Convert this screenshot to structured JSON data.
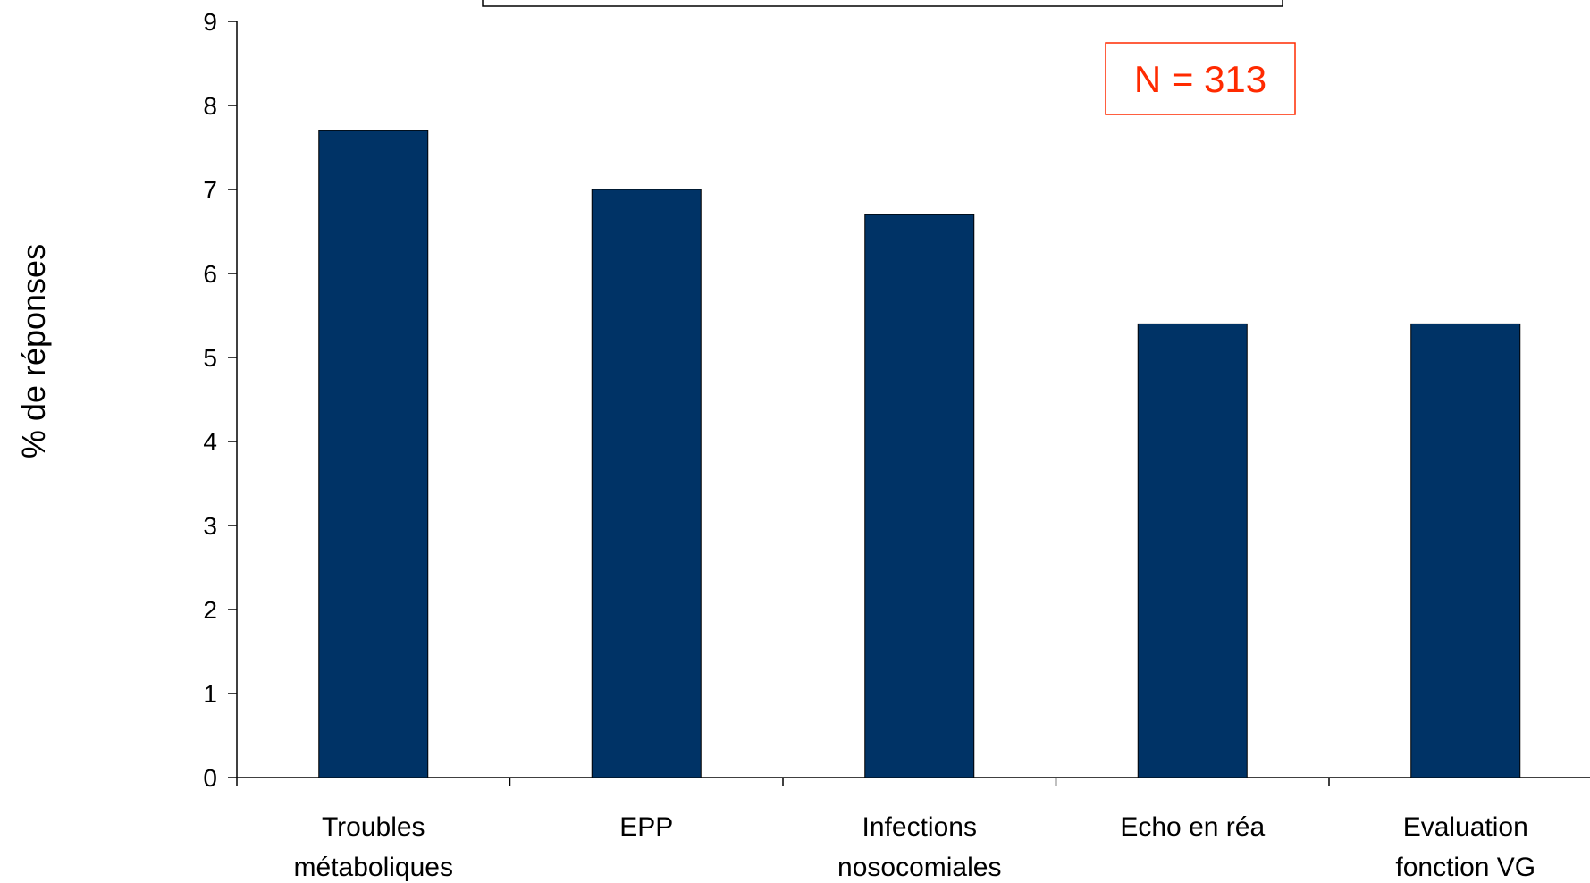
{
  "chart_data": {
    "type": "bar",
    "categories": [
      [
        "Troubles",
        "métaboliques"
      ],
      [
        "EPP"
      ],
      [
        "Infections",
        "nosocomiales"
      ],
      [
        "Echo en réa"
      ],
      [
        "Evaluation",
        "fonction VG"
      ]
    ],
    "values": [
      7.7,
      7.0,
      6.7,
      5.4,
      5.4
    ],
    "ylabel": "% de réponses",
    "xlabel": "",
    "ylim": [
      0,
      9
    ],
    "yticks": [
      "0",
      "1",
      "2",
      "3",
      "4",
      "5",
      "6",
      "7",
      "8",
      "9"
    ],
    "grid": false,
    "legend": "none",
    "annotation": "N = 313",
    "colors": {
      "bar": "#003366",
      "bar_stroke": "#000000",
      "annotation": "#ff2a00",
      "axis": "#000000"
    }
  }
}
